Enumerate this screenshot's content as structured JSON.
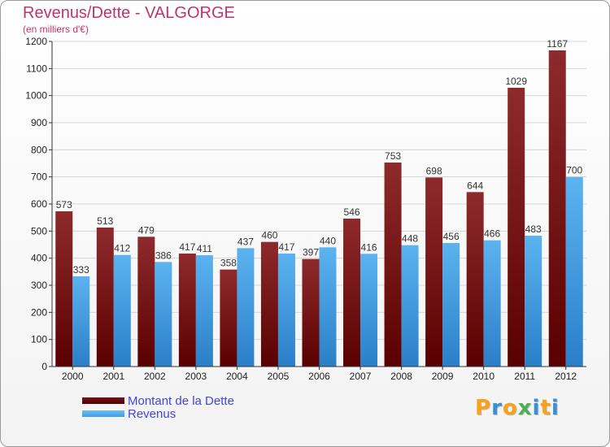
{
  "chart_data": {
    "type": "bar",
    "title": "Revenus/Dette - VALGORGE",
    "subtitle": "(en milliers d'€)",
    "categories": [
      "2000",
      "2001",
      "2002",
      "2003",
      "2004",
      "2005",
      "2006",
      "2007",
      "2008",
      "2009",
      "2010",
      "2011",
      "2012"
    ],
    "series": [
      {
        "name": "Montant de la Dette",
        "color": "#7a1416",
        "values": [
          573,
          513,
          479,
          417,
          358,
          460,
          397,
          546,
          753,
          698,
          644,
          1029,
          1167
        ]
      },
      {
        "name": "Revenus",
        "color": "#3f9ee8",
        "values": [
          333,
          412,
          386,
          411,
          437,
          417,
          440,
          416,
          448,
          456,
          466,
          483,
          700
        ]
      }
    ],
    "ylim": [
      0,
      1200
    ],
    "yticks": [
      0,
      100,
      200,
      300,
      400,
      500,
      600,
      700,
      800,
      900,
      1000,
      1100,
      1200
    ],
    "grid": true,
    "legend": "bottom-left"
  },
  "brand": {
    "letters": [
      "P",
      "r",
      "o",
      "x",
      "i",
      "t",
      "i"
    ],
    "colors": [
      "#f7a21b",
      "#3a8fd8",
      "#f7a21b",
      "#4caf50",
      "#3a8fd8",
      "#f7a21b",
      "#3a8fd8"
    ]
  }
}
